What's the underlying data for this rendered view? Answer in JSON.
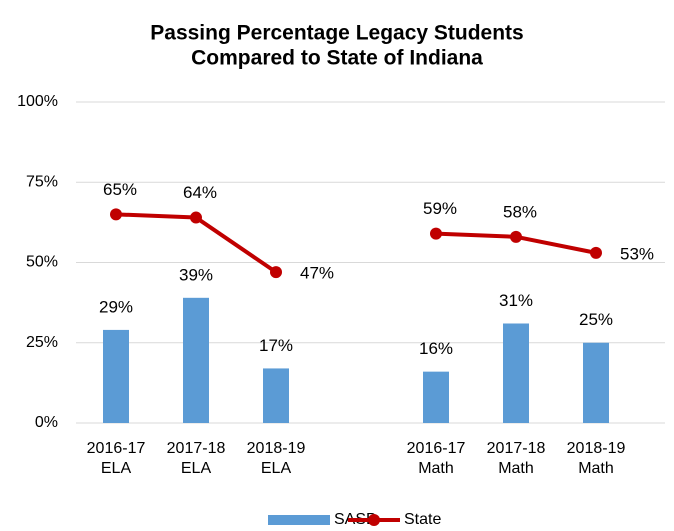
{
  "chart_data": {
    "type": "bar_line",
    "title": [
      "Passing Percentage Legacy Students",
      "Compared to State of Indiana"
    ],
    "categories": [
      "2016-17 ELA",
      "2017-18 ELA",
      "2018-19 ELA",
      null,
      "2016-17 Math",
      "2017-18 Math",
      "2018-19 Math"
    ],
    "series": [
      {
        "name": "SASB",
        "type": "bar",
        "color": "#5b9bd5",
        "values": [
          29,
          39,
          17,
          null,
          16,
          31,
          25
        ],
        "value_labels": [
          "29%",
          "39%",
          "17%",
          null,
          "16%",
          "31%",
          "25%"
        ]
      },
      {
        "name": "State",
        "type": "line",
        "color": "#c00000",
        "values": [
          65,
          64,
          47,
          null,
          59,
          58,
          53
        ],
        "value_labels": [
          "65%",
          "64%",
          "47%",
          null,
          "59%",
          "58%",
          "53%"
        ]
      }
    ],
    "ylim": [
      0,
      100
    ],
    "yticks": [
      {
        "value": 0,
        "label": "0%"
      },
      {
        "value": 25,
        "label": "25%"
      },
      {
        "value": 50,
        "label": "50%"
      },
      {
        "value": 75,
        "label": "75%"
      },
      {
        "value": 100,
        "label": "100%"
      }
    ],
    "grid": true,
    "legend": "bottom"
  }
}
